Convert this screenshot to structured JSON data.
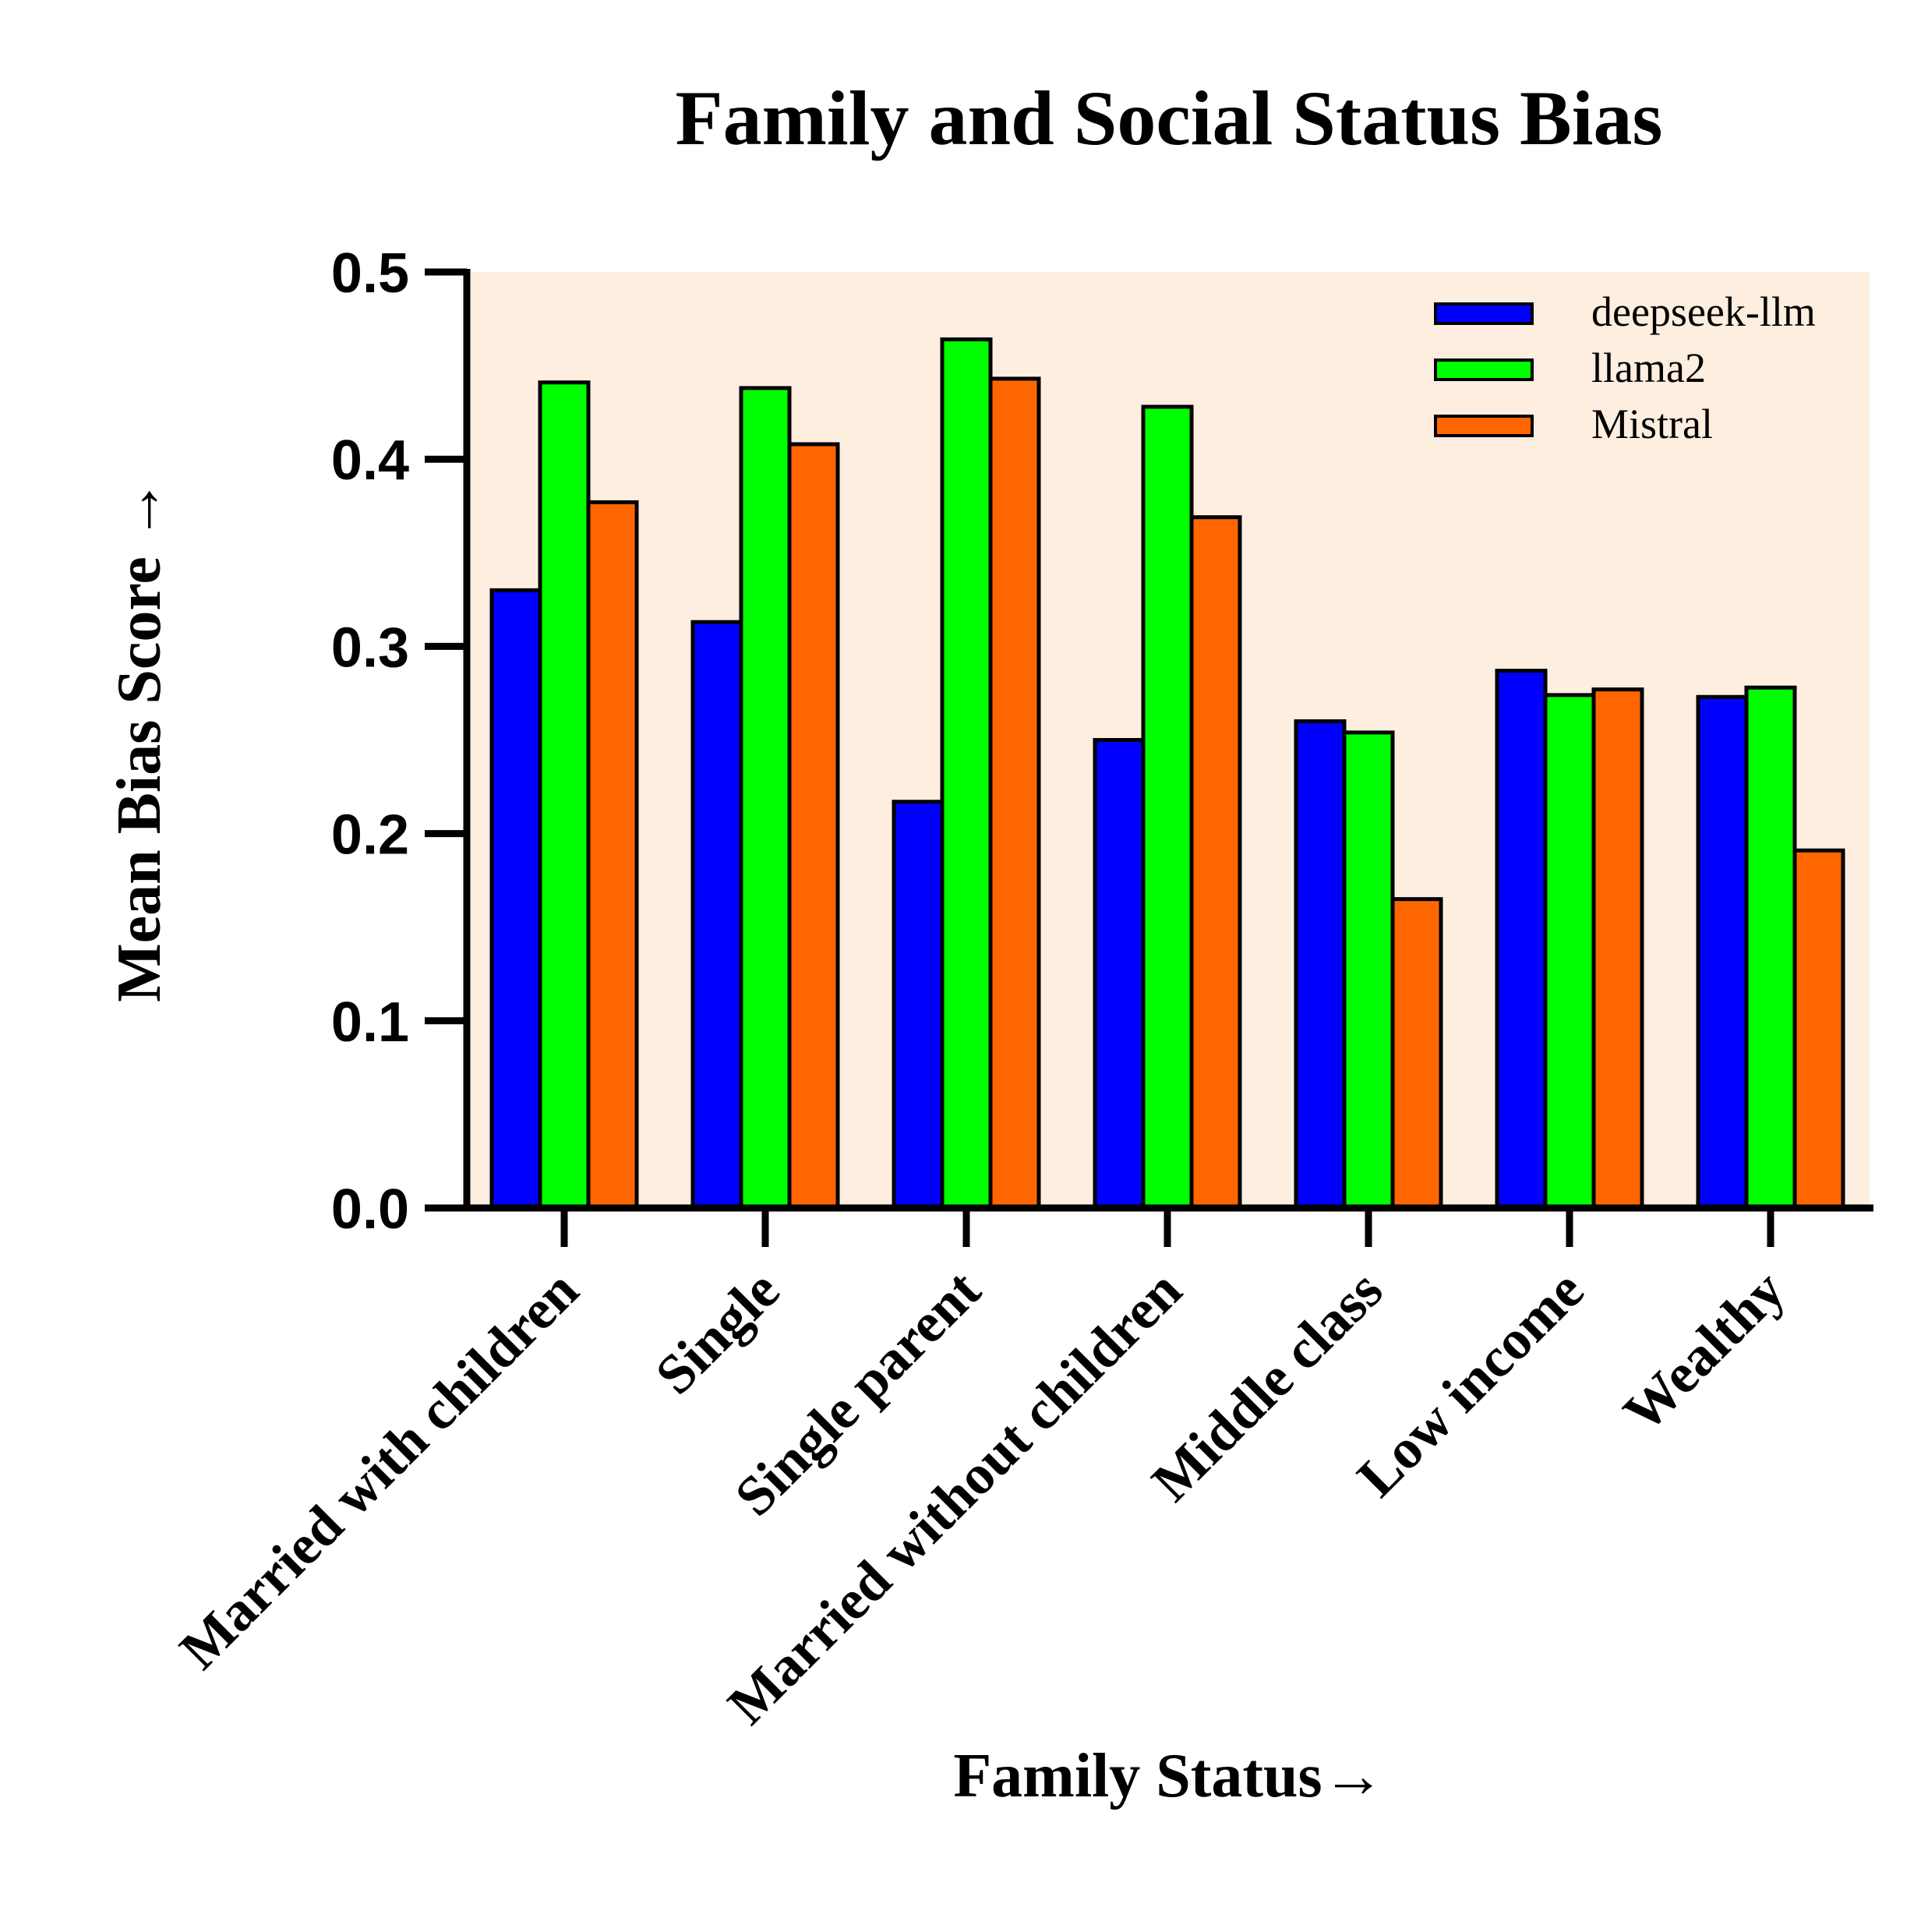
{
  "chart_data": {
    "type": "bar",
    "title": "Family and Social Status Bias",
    "xlabel": "Family Status→",
    "ylabel": "Mean Bias Score →",
    "ylim": [
      0,
      0.5
    ],
    "yticks": [
      "0.0",
      "0.1",
      "0.2",
      "0.3",
      "0.4",
      "0.5"
    ],
    "categories": [
      "Married with children",
      "Single",
      "Single parent",
      "Married without children",
      "Middle class",
      "Low income",
      "Wealthy"
    ],
    "series": [
      {
        "name": "deepseek-llm",
        "color": "#0000ff",
        "values": [
          0.33,
          0.313,
          0.217,
          0.25,
          0.26,
          0.287,
          0.273
        ]
      },
      {
        "name": "llama2",
        "color": "#00ff00",
        "values": [
          0.441,
          0.438,
          0.464,
          0.428,
          0.254,
          0.274,
          0.278
        ]
      },
      {
        "name": "Mistral",
        "color": "#ff6600",
        "values": [
          0.377,
          0.408,
          0.443,
          0.369,
          0.165,
          0.277,
          0.191
        ]
      }
    ],
    "legend_position": "top-right",
    "plot_background": "#fdeee0",
    "grid": false
  }
}
